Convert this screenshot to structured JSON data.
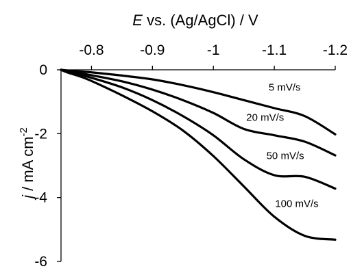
{
  "chart_data": {
    "type": "line",
    "xlabel_italic": "E",
    "xlabel_rest": " vs. (Ag/AgCl) / V",
    "ylabel_italic": "j",
    "ylabel_rest": " / mA cm",
    "ylabel_sup": "-2",
    "x_axis_position": "top",
    "x_reversed": true,
    "xlim": [
      -0.75,
      -1.2
    ],
    "ylim": [
      -6,
      0
    ],
    "x_ticks": [
      -0.8,
      -0.9,
      -1.0,
      -1.1,
      -1.2
    ],
    "x_tick_labels": [
      "-0.8",
      "-0.9",
      "-1",
      "-1.1",
      "-1.2"
    ],
    "y_ticks": [
      0,
      -2,
      -4,
      -6
    ],
    "y_tick_labels": [
      "0",
      "-2",
      "-4",
      "-6"
    ],
    "grid": false,
    "legend": "inline labels",
    "series": [
      {
        "name": "5 mV/s",
        "x": [
          -0.75,
          -0.76,
          -0.78,
          -0.8,
          -0.85,
          -0.9,
          -0.95,
          -1.0,
          -1.05,
          -1.1,
          -1.15,
          -1.2
        ],
        "y": [
          0.0,
          -0.02,
          -0.05,
          -0.08,
          -0.18,
          -0.3,
          -0.48,
          -0.7,
          -0.95,
          -1.2,
          -1.45,
          -2.02
        ]
      },
      {
        "name": "20 mV/s",
        "x": [
          -0.75,
          -0.76,
          -0.78,
          -0.8,
          -0.85,
          -0.9,
          -0.95,
          -1.0,
          -1.05,
          -1.1,
          -1.15,
          -1.2
        ],
        "y": [
          0.0,
          -0.04,
          -0.1,
          -0.17,
          -0.36,
          -0.62,
          -0.95,
          -1.35,
          -1.85,
          -2.05,
          -2.25,
          -2.68
        ]
      },
      {
        "name": "50 mV/s",
        "x": [
          -0.75,
          -0.76,
          -0.78,
          -0.8,
          -0.85,
          -0.9,
          -0.95,
          -1.0,
          -1.05,
          -1.1,
          -1.15,
          -1.2
        ],
        "y": [
          0.0,
          -0.06,
          -0.15,
          -0.25,
          -0.55,
          -0.95,
          -1.45,
          -2.05,
          -2.8,
          -3.3,
          -3.35,
          -3.72
        ]
      },
      {
        "name": "100 mV/s",
        "x": [
          -0.75,
          -0.76,
          -0.78,
          -0.8,
          -0.85,
          -0.9,
          -0.95,
          -1.0,
          -1.05,
          -1.1,
          -1.15,
          -1.2
        ],
        "y": [
          0.0,
          -0.08,
          -0.2,
          -0.35,
          -0.8,
          -1.3,
          -1.9,
          -2.7,
          -3.65,
          -4.6,
          -5.2,
          -5.32
        ]
      }
    ],
    "label_anchors": [
      {
        "text": "5 mV/s",
        "x": -1.117,
        "y": -0.65
      },
      {
        "text": "20 mV/s",
        "x": -1.085,
        "y": -1.6
      },
      {
        "text": "50 mV/s",
        "x": -1.118,
        "y": -2.8
      },
      {
        "text": "100 mV/s",
        "x": -1.137,
        "y": -4.3
      }
    ]
  }
}
